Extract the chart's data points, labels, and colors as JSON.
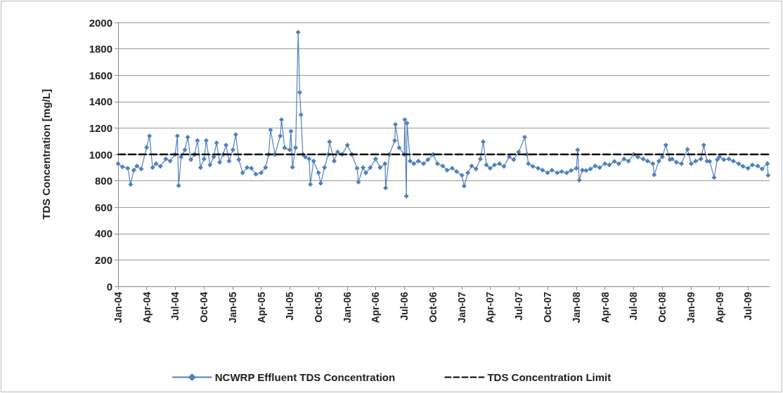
{
  "chart_data": {
    "type": "line",
    "ylabel": "TDS Concentration [mg/L]",
    "xlim": [
      "2004-01-01",
      "2009-09-08"
    ],
    "xticks": [
      {
        "value": "2004-01",
        "label": "Jan-04"
      },
      {
        "value": "2004-04",
        "label": "Apr-04"
      },
      {
        "value": "2004-07",
        "label": "Jul-04"
      },
      {
        "value": "2004-10",
        "label": "Oct-04"
      },
      {
        "value": "2005-01",
        "label": "Jan-05"
      },
      {
        "value": "2005-04",
        "label": "Apr-05"
      },
      {
        "value": "2005-07",
        "label": "Jul-05"
      },
      {
        "value": "2005-10",
        "label": "Oct-05"
      },
      {
        "value": "2006-01",
        "label": "Jan-06"
      },
      {
        "value": "2006-04",
        "label": "Apr-06"
      },
      {
        "value": "2006-07",
        "label": "Jul-06"
      },
      {
        "value": "2006-10",
        "label": "Oct-06"
      },
      {
        "value": "2007-01",
        "label": "Jan-07"
      },
      {
        "value": "2007-04",
        "label": "Apr-07"
      },
      {
        "value": "2007-07",
        "label": "Jul-07"
      },
      {
        "value": "2007-10",
        "label": "Oct-07"
      },
      {
        "value": "2008-01",
        "label": "Jan-08"
      },
      {
        "value": "2008-04",
        "label": "Apr-08"
      },
      {
        "value": "2008-07",
        "label": "Jul-08"
      },
      {
        "value": "2008-10",
        "label": "Oct-08"
      },
      {
        "value": "2009-01",
        "label": "Jan-09"
      },
      {
        "value": "2009-04",
        "label": "Apr-09"
      },
      {
        "value": "2009-07",
        "label": "Jul-09"
      }
    ],
    "ylim": [
      0,
      2000
    ],
    "yticks": [
      0,
      200,
      400,
      600,
      800,
      1000,
      1200,
      1400,
      1600,
      1800,
      2000
    ],
    "grid": "y",
    "legend": "bottom",
    "marker": "diamond",
    "series": [
      {
        "name": "NCWRP Effluent TDS Concentration",
        "color": "#4f81bd",
        "x": [
          "2004-01-01",
          "2004-01-15",
          "2004-02-01",
          "2004-02-10",
          "2004-02-20",
          "2004-03-01",
          "2004-03-15",
          "2004-04-01",
          "2004-04-10",
          "2004-04-20",
          "2004-05-01",
          "2004-05-15",
          "2004-06-01",
          "2004-06-15",
          "2004-07-01",
          "2004-07-08",
          "2004-07-12",
          "2004-07-20",
          "2004-08-01",
          "2004-08-10",
          "2004-08-20",
          "2004-09-01",
          "2004-09-10",
          "2004-09-20",
          "2004-10-01",
          "2004-10-08",
          "2004-10-20",
          "2004-11-01",
          "2004-11-10",
          "2004-11-20",
          "2004-12-01",
          "2004-12-10",
          "2004-12-20",
          "2005-01-01",
          "2005-01-10",
          "2005-01-20",
          "2005-02-01",
          "2005-02-15",
          "2005-03-01",
          "2005-03-15",
          "2005-04-01",
          "2005-04-15",
          "2005-04-25",
          "2005-05-01",
          "2005-05-15",
          "2005-06-01",
          "2005-06-05",
          "2005-06-15",
          "2005-07-01",
          "2005-07-05",
          "2005-07-10",
          "2005-07-20",
          "2005-07-28",
          "2005-08-02",
          "2005-08-06",
          "2005-08-12",
          "2005-08-20",
          "2005-09-01",
          "2005-09-05",
          "2005-09-15",
          "2005-10-01",
          "2005-10-08",
          "2005-10-20",
          "2005-11-01",
          "2005-11-05",
          "2005-11-20",
          "2005-12-01",
          "2005-12-15",
          "2006-01-01",
          "2006-01-15",
          "2006-02-01",
          "2006-02-05",
          "2006-02-20",
          "2006-03-01",
          "2006-03-15",
          "2006-04-01",
          "2006-04-15",
          "2006-05-01",
          "2006-05-03",
          "2006-05-15",
          "2006-06-01",
          "2006-06-03",
          "2006-06-15",
          "2006-07-01",
          "2006-07-03",
          "2006-07-08",
          "2006-07-10",
          "2006-07-20",
          "2006-08-01",
          "2006-08-15",
          "2006-09-01",
          "2006-09-15",
          "2006-10-01",
          "2006-10-15",
          "2006-11-01",
          "2006-11-15",
          "2006-12-01",
          "2006-12-15",
          "2007-01-01",
          "2007-01-08",
          "2007-01-20",
          "2007-02-01",
          "2007-02-15",
          "2007-03-01",
          "2007-03-10",
          "2007-03-20",
          "2007-04-01",
          "2007-04-15",
          "2007-05-01",
          "2007-05-15",
          "2007-06-01",
          "2007-06-15",
          "2007-07-01",
          "2007-07-20",
          "2007-07-28",
          "2007-08-01",
          "2007-08-15",
          "2007-09-01",
          "2007-09-15",
          "2007-10-01",
          "2007-10-15",
          "2007-11-01",
          "2007-11-15",
          "2007-12-01",
          "2007-12-15",
          "2008-01-01",
          "2008-01-05",
          "2008-01-10",
          "2008-01-20",
          "2008-02-01",
          "2008-02-15",
          "2008-03-01",
          "2008-03-15",
          "2008-04-01",
          "2008-04-15",
          "2008-05-01",
          "2008-05-15",
          "2008-06-01",
          "2008-06-15",
          "2008-07-01",
          "2008-07-15",
          "2008-08-01",
          "2008-08-15",
          "2008-09-01",
          "2008-09-05",
          "2008-09-20",
          "2008-10-01",
          "2008-10-12",
          "2008-10-25",
          "2008-11-01",
          "2008-11-15",
          "2008-12-01",
          "2008-12-20",
          "2009-01-01",
          "2009-01-15",
          "2009-02-01",
          "2009-02-10",
          "2009-02-20",
          "2009-03-01",
          "2009-03-15",
          "2009-03-25",
          "2009-04-01",
          "2009-04-15",
          "2009-05-01",
          "2009-05-15",
          "2009-06-01",
          "2009-06-15",
          "2009-07-01",
          "2009-07-15",
          "2009-08-01",
          "2009-08-15",
          "2009-09-01",
          "2009-09-03"
        ],
        "values": [
          930,
          905,
          895,
          772,
          880,
          912,
          890,
          1053,
          1140,
          900,
          930,
          910,
          965,
          950,
          1000,
          1140,
          763,
          980,
          1035,
          1130,
          960,
          1000,
          1105,
          900,
          965,
          1105,
          920,
          982,
          1088,
          940,
          1000,
          1070,
          950,
          1035,
          1150,
          960,
          860,
          900,
          895,
          850,
          860,
          900,
          1000,
          1185,
          1000,
          1140,
          1263,
          1050,
          1035,
          1175,
          903,
          1050,
          1926,
          1470,
          1300,
          1000,
          980,
          965,
          772,
          950,
          860,
          780,
          900,
          1000,
          1096,
          950,
          1018,
          1000,
          1070,
          1000,
          895,
          790,
          900,
          860,
          900,
          965,
          900,
          930,
          746,
          1000,
          1105,
          1228,
          1050,
          1000,
          1263,
          684,
          1237,
          950,
          930,
          950,
          930,
          960,
          1000,
          930,
          912,
          880,
          895,
          870,
          842,
          760,
          860,
          912,
          890,
          965,
          1096,
          920,
          895,
          920,
          930,
          910,
          982,
          960,
          1018,
          1130,
          1000,
          930,
          910,
          895,
          880,
          860,
          880,
          860,
          870,
          860,
          877,
          895,
          1035,
          804,
          880,
          877,
          890,
          912,
          900,
          930,
          920,
          947,
          930,
          965,
          950,
          1000,
          980,
          965,
          950,
          930,
          846,
          950,
          982,
          1070,
          960,
          965,
          940,
          930,
          1038,
          930,
          950,
          965,
          1070,
          950,
          947,
          825,
          960,
          982,
          960,
          965,
          950,
          930,
          910,
          895,
          920,
          912,
          890,
          930,
          842
        ]
      },
      {
        "name": "TDS Concentration Limit",
        "color": "#000000",
        "marker": "none",
        "line_style": "dashed",
        "x": [
          "2004-01-01",
          "2009-09-08"
        ],
        "values": [
          1000,
          1000
        ]
      }
    ]
  }
}
